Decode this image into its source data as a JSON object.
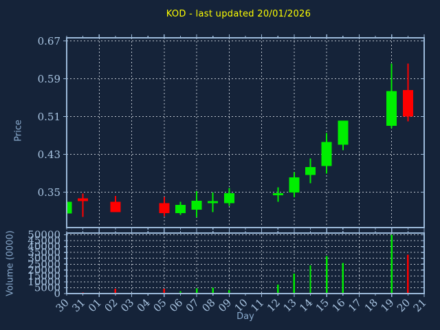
{
  "title": {
    "text": "KOD - last updated 20/01/2026"
  },
  "chart_data": {
    "type": "candlestick",
    "title": "KOD - last updated 20/01/2026",
    "xlabel": "Day",
    "x_categories": [
      "30",
      "31",
      "01",
      "02",
      "03",
      "04",
      "05",
      "06",
      "07",
      "08",
      "09",
      "10",
      "11",
      "12",
      "13",
      "14",
      "15",
      "16",
      "17",
      "18",
      "19",
      "20",
      "21"
    ],
    "grid_x_categories": [
      "01",
      "03",
      "05",
      "07",
      "09",
      "11",
      "13",
      "15",
      "17",
      "19",
      "21"
    ],
    "price_axis": {
      "label": "Price",
      "ticks": [
        "0.35",
        "0.43",
        "0.51",
        "0.59",
        "0.67"
      ],
      "ylim": [
        0.2751,
        0.6765
      ],
      "grid": true
    },
    "volume_axis": {
      "label": "Volume (0000)",
      "ticks": [
        "0",
        "5000",
        "10000",
        "15000",
        "20000",
        "25000",
        "30000",
        "35000",
        "40000",
        "45000",
        "50000"
      ],
      "ylim": [
        0,
        51500
      ],
      "grid": true
    },
    "candles": [
      {
        "day": "30",
        "open": 0.305,
        "high": 0.33,
        "low": 0.305,
        "close": 0.33
      },
      {
        "day": "31",
        "open": 0.337,
        "high": 0.347,
        "low": 0.298,
        "close": 0.331
      },
      {
        "day": "02",
        "open": 0.33,
        "high": 0.342,
        "low": 0.308,
        "close": 0.308
      },
      {
        "day": "05",
        "open": 0.327,
        "high": 0.34,
        "low": 0.299,
        "close": 0.306
      },
      {
        "day": "06",
        "open": 0.306,
        "high": 0.33,
        "low": 0.302,
        "close": 0.323
      },
      {
        "day": "07",
        "open": 0.313,
        "high": 0.352,
        "low": 0.297,
        "close": 0.332
      },
      {
        "day": "08",
        "open": 0.329,
        "high": 0.349,
        "low": 0.308,
        "close": 0.331
      },
      {
        "day": "09",
        "open": 0.327,
        "high": 0.359,
        "low": 0.321,
        "close": 0.348
      },
      {
        "day": "12",
        "open": 0.346,
        "high": 0.36,
        "low": 0.33,
        "close": 0.348
      },
      {
        "day": "13",
        "open": 0.349,
        "high": 0.392,
        "low": 0.339,
        "close": 0.381
      },
      {
        "day": "14",
        "open": 0.386,
        "high": 0.421,
        "low": 0.369,
        "close": 0.403
      },
      {
        "day": "15",
        "open": 0.405,
        "high": 0.475,
        "low": 0.389,
        "close": 0.456
      },
      {
        "day": "16",
        "open": 0.45,
        "high": 0.501,
        "low": 0.439,
        "close": 0.501
      },
      {
        "day": "19",
        "open": 0.49,
        "high": 0.622,
        "low": 0.485,
        "close": 0.564
      },
      {
        "day": "20",
        "open": 0.566,
        "high": 0.622,
        "low": 0.5,
        "close": 0.51
      }
    ],
    "volume": [
      {
        "day": "31",
        "value": 1000,
        "direction": "down"
      },
      {
        "day": "02",
        "value": 4000,
        "direction": "down"
      },
      {
        "day": "05",
        "value": 4000,
        "direction": "down"
      },
      {
        "day": "06",
        "value": 2000,
        "direction": "up"
      },
      {
        "day": "07",
        "value": 4500,
        "direction": "up"
      },
      {
        "day": "08",
        "value": 5000,
        "direction": "up"
      },
      {
        "day": "09",
        "value": 3000,
        "direction": "up"
      },
      {
        "day": "12",
        "value": 7500,
        "direction": "up"
      },
      {
        "day": "13",
        "value": 17000,
        "direction": "up"
      },
      {
        "day": "14",
        "value": 24000,
        "direction": "up"
      },
      {
        "day": "15",
        "value": 32000,
        "direction": "up"
      },
      {
        "day": "16",
        "value": 26000,
        "direction": "up"
      },
      {
        "day": "19",
        "value": 50000,
        "direction": "up"
      },
      {
        "day": "20",
        "value": 33000,
        "direction": "down"
      }
    ],
    "colors": {
      "up": "#00ee00",
      "down": "#ff0000",
      "background": "#152339",
      "frame": "#9cbada",
      "grid": "#bcc3cd",
      "tick_label": "#a9c5e2",
      "axis_label": "#8aabce",
      "title": "#ffff00"
    },
    "legend": "none"
  }
}
